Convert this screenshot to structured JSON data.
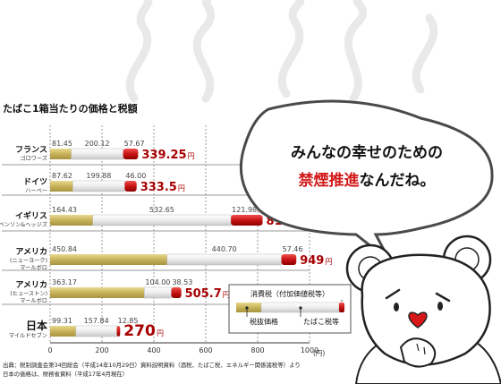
{
  "chart_data": {
    "type": "bar",
    "stacked": true,
    "title": "たばこ1箱当たりの価格と税額",
    "categories": [
      {
        "name": "フランス",
        "sub": "ゴロワーズ"
      },
      {
        "name": "ドイツ",
        "sub": "ハーベー"
      },
      {
        "name": "イギリス",
        "sub": "ベンソン&ヘッジズ"
      },
      {
        "name": "アメリカ",
        "sub": "(ニューヨーク)\nマールボロ"
      },
      {
        "name": "アメリカ",
        "sub": "(ヒューストン)\nマールボロ"
      },
      {
        "name": "日本",
        "sub": "マイルドセブン"
      }
    ],
    "series": [
      {
        "name": "税抜価格",
        "color": "#c8b35a",
        "values": [
          81.45,
          87.62,
          164.43,
          450.84,
          363.17,
          99.31
        ],
        "labels": [
          "81.45",
          "87.62",
          "164.43",
          "450.84",
          "363.17",
          "99.31"
        ]
      },
      {
        "name": "たばこ税等",
        "color": "#e6e6e6",
        "values": [
          200.12,
          199.88,
          532.65,
          440.7,
          104.0,
          157.84
        ],
        "labels": [
          "200.12",
          "199.88",
          "532.65",
          "440.70",
          "104.00",
          "157.84"
        ]
      },
      {
        "name": "消費税（付加価値税等）",
        "color": "#c81414",
        "values": [
          57.67,
          46.0,
          121.98,
          57.46,
          38.53,
          12.85
        ],
        "labels": [
          "57.67",
          "46.00",
          "121.98",
          "57.46",
          "38.53",
          "12.85"
        ]
      }
    ],
    "totals": [
      "339.25",
      "333.5",
      "819.06",
      "949",
      "505.7",
      "270"
    ],
    "total_unit": "円",
    "xlim": [
      0,
      1000
    ],
    "x_ticks": [
      "0",
      "200",
      "400",
      "600",
      "800",
      "1000"
    ],
    "x_unit": "(円)",
    "legend_position": "bottom-right",
    "legend": {
      "top": "消費税（付加価値税等）",
      "left": "税抜価格",
      "right": "たばこ税等"
    }
  },
  "speech_bubble": {
    "line1": "みんなの幸せのための",
    "emphasis": "禁煙推進",
    "line2_rest": "なんだね。"
  },
  "source_note": {
    "line1": "出典：税制調査会第34回総会（平成14年10月29日）資料説明資料（酒税、たばこ税、エネルギー関係諸税等）より",
    "line2": "日本の価格は、財務省資料（平成17年4月現在）"
  },
  "colors": {
    "accent": "#a80000",
    "bubble_text": "#111111",
    "emphasis": "#d21919"
  }
}
